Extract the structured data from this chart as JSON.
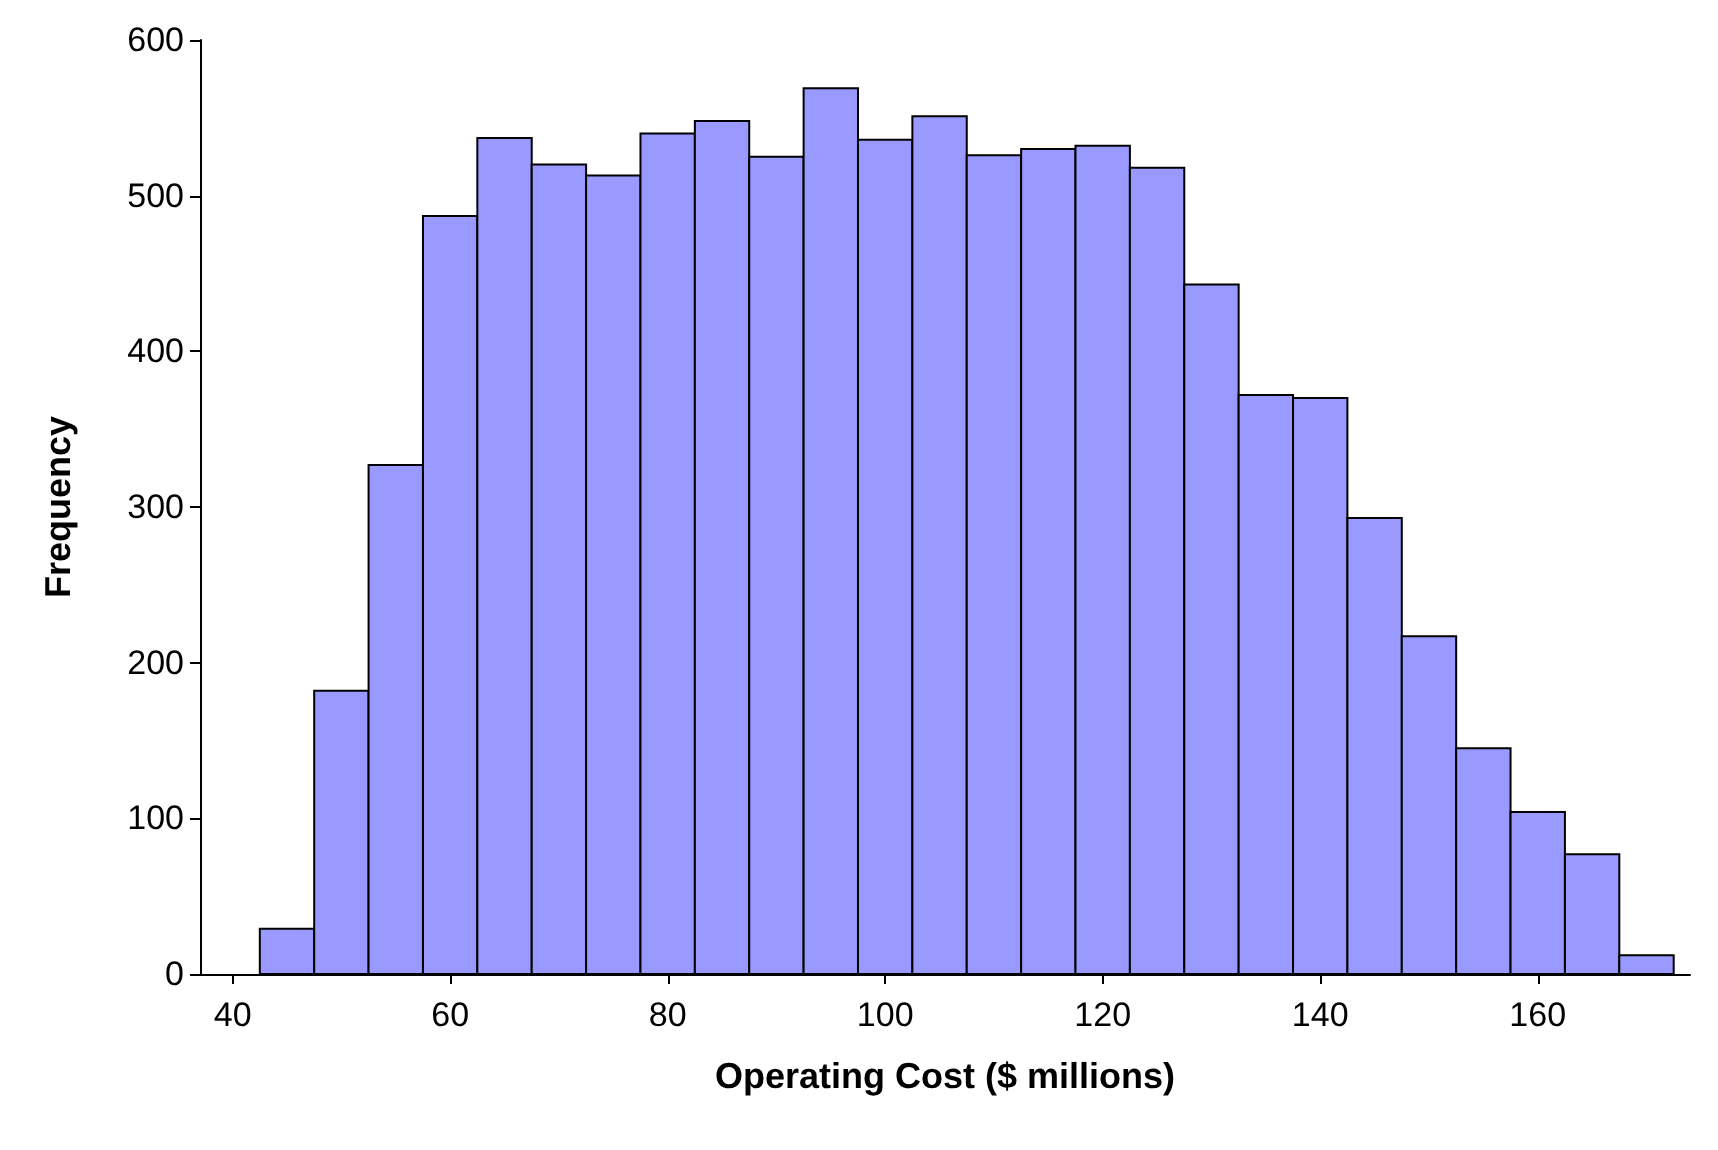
{
  "chart_data": {
    "type": "histogram",
    "xlabel": "Operating Cost ($ millions)",
    "ylabel": "Frequency",
    "bins": [
      42.5,
      47.5,
      52.5,
      57.5,
      62.5,
      67.5,
      72.5,
      77.5,
      82.5,
      87.5,
      92.5,
      97.5,
      102.5,
      107.5,
      112.5,
      117.5,
      122.5,
      127.5,
      132.5,
      137.5,
      142.5,
      147.5,
      152.5,
      157.5,
      162.5,
      167.5,
      172.5
    ],
    "values": [
      29,
      182,
      327,
      487,
      537,
      520,
      513,
      540,
      548,
      525,
      569,
      536,
      551,
      526,
      530,
      532,
      518,
      443,
      372,
      370,
      293,
      217,
      145,
      104,
      77,
      12
    ],
    "color": "#9999ff",
    "xlim": [
      37,
      174
    ],
    "xticks": [
      40,
      60,
      80,
      100,
      120,
      140,
      160
    ],
    "ylim": [
      0,
      600
    ],
    "yticks": [
      0,
      100,
      200,
      300,
      400,
      500,
      600
    ],
    "grid": false
  }
}
